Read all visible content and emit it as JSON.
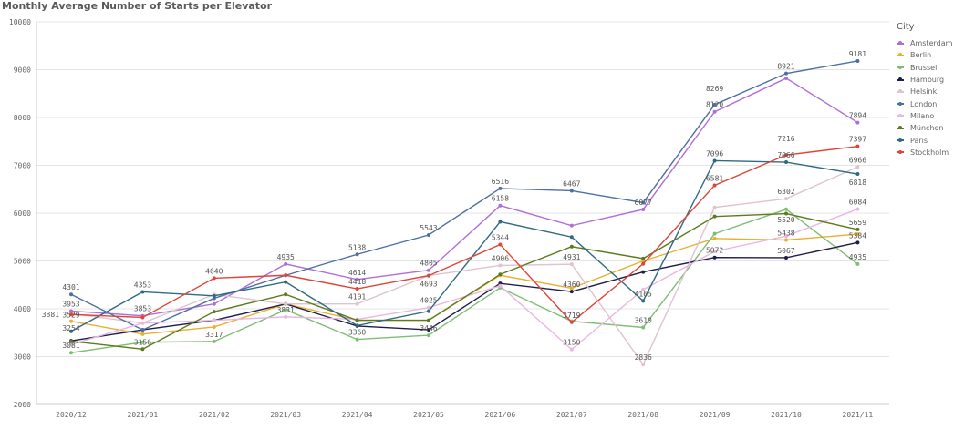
{
  "chart_data": {
    "type": "line",
    "title": "Monthly Average Number of Starts per Elevator",
    "xlabel": "",
    "ylabel": "",
    "legend_title": "City",
    "legend_position": "right",
    "grid": true,
    "ylim": [
      2000,
      10000
    ],
    "yticks": [
      "2000",
      "3000",
      "4000",
      "5000",
      "6000",
      "7000",
      "8000",
      "9000",
      "10000"
    ],
    "categories": [
      "2020/12",
      "2021/01",
      "2021/02",
      "2021/03",
      "2021/04",
      "2021/05",
      "2021/06",
      "2021/07",
      "2021/08",
      "2021/09",
      "2021/10",
      "2021/11"
    ],
    "series": [
      {
        "name": "Amsterdam",
        "color": "#b06fd8",
        "values": [
          3953,
          3853,
          4100,
          4935,
          4614,
          4805,
          6158,
          5740,
          6077,
          8120,
          8820,
          7894
        ],
        "labeled": [
          0,
          1,
          3,
          4,
          5,
          6,
          8,
          9,
          11
        ]
      },
      {
        "name": "Berlin",
        "color": "#e8b030",
        "values": [
          3740,
          3470,
          3620,
          4100,
          3760,
          3760,
          4700,
          4430,
          5000,
          5470,
          5438,
          5560
        ],
        "labeled": [
          10
        ]
      },
      {
        "name": "Brussel",
        "color": "#7fbf74",
        "values": [
          3081,
          3300,
          3317,
          3980,
          3360,
          3446,
          4440,
          3740,
          3610,
          5570,
          6080,
          4935
        ],
        "labeled": [
          0,
          2,
          4,
          5,
          8,
          11
        ]
      },
      {
        "name": "Hamburg",
        "color": "#1e1e4a",
        "values": [
          3330,
          3560,
          3760,
          4100,
          3640,
          3560,
          4530,
          4360,
          4770,
          5072,
          5067,
          5384
        ],
        "labeled": [
          7,
          9,
          10,
          11
        ]
      },
      {
        "name": "Helsinki",
        "color": "#e0c3d0",
        "values": [
          3900,
          3700,
          4300,
          4100,
          4101,
          4693,
          4906,
          4931,
          2836,
          6120,
          6302,
          6966
        ],
        "labeled": [
          4,
          6,
          7,
          8,
          10,
          11
        ]
      },
      {
        "name": "London",
        "color": "#4e6fa3",
        "values": [
          4301,
          3560,
          4220,
          4700,
          5138,
          5543,
          6516,
          6467,
          6220,
          8269,
          8921,
          9181
        ],
        "labeled": [
          0,
          4,
          5,
          6,
          7,
          9,
          10,
          11
        ]
      },
      {
        "name": "Milano",
        "color": "#e8b8e2",
        "values": [
          3254,
          3700,
          3760,
          3831,
          3780,
          4025,
          4480,
          3150,
          4400,
          5200,
          5520,
          6084
        ],
        "labeled": [
          0,
          3,
          5,
          7,
          10,
          11
        ]
      },
      {
        "name": "München",
        "color": "#5c7a1e",
        "values": [
          3320,
          3156,
          3940,
          4300,
          3760,
          3760,
          4720,
          5300,
          5050,
          5930,
          5990,
          5659
        ],
        "labeled": [
          1,
          11
        ]
      },
      {
        "name": "Paris",
        "color": "#2e6b82",
        "values": [
          3529,
          4353,
          4270,
          4560,
          3650,
          3950,
          5820,
          5500,
          4165,
          7096,
          7066,
          6818
        ],
        "labeled": [
          0,
          1,
          8,
          9,
          10,
          11
        ]
      },
      {
        "name": "Stockholm",
        "color": "#e04438",
        "values": [
          3881,
          3820,
          4640,
          4700,
          4418,
          4693,
          5344,
          3719,
          4940,
          6581,
          7216,
          7397
        ],
        "labeled": [
          0,
          2,
          4,
          5,
          6,
          7,
          9,
          10,
          11
        ]
      }
    ]
  }
}
